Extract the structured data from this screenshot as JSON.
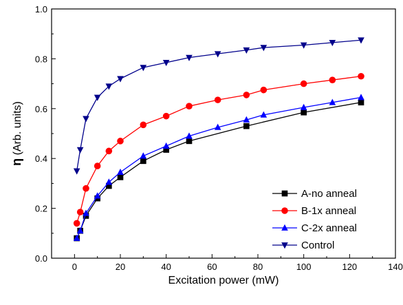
{
  "chart_data": {
    "type": "line",
    "title": "",
    "xlabel": "Excitation power (mW)",
    "ylabel_symbol": "η",
    "ylabel_text": " (Arb. units)",
    "xlim": [
      -10,
      140
    ],
    "ylim": [
      0.0,
      1.0
    ],
    "xticks": [
      0,
      20,
      40,
      60,
      80,
      100,
      120,
      140
    ],
    "yticks": [
      0.0,
      0.2,
      0.4,
      0.6,
      0.8,
      1.0
    ],
    "xtick_labels": [
      "0",
      "20",
      "40",
      "60",
      "80",
      "100",
      "120",
      "140"
    ],
    "ytick_labels": [
      "0.0",
      "0.2",
      "0.4",
      "0.6",
      "0.8",
      "1.0"
    ],
    "grid": false,
    "legend_position": "bottom-right",
    "series": [
      {
        "name": "A-no anneal",
        "color": "#000000",
        "marker": "square",
        "x": [
          1,
          2.5,
          5,
          10,
          15,
          20,
          30,
          40,
          50,
          75,
          100,
          125
        ],
        "y": [
          0.08,
          0.11,
          0.17,
          0.24,
          0.29,
          0.325,
          0.39,
          0.435,
          0.47,
          0.53,
          0.585,
          0.625
        ]
      },
      {
        "name": "B-1x anneal",
        "color": "#ff0000",
        "marker": "circle",
        "x": [
          1,
          2.5,
          5,
          10,
          15,
          20,
          30,
          40,
          50,
          62.5,
          75,
          82.5,
          100,
          112.5,
          125
        ],
        "y": [
          0.14,
          0.185,
          0.28,
          0.37,
          0.43,
          0.47,
          0.535,
          0.57,
          0.61,
          0.635,
          0.655,
          0.675,
          0.7,
          0.715,
          0.73
        ]
      },
      {
        "name": "C-2x anneal",
        "color": "#0000ff",
        "marker": "triangle-up",
        "x": [
          1,
          2.5,
          5,
          10,
          15,
          20,
          30,
          40,
          50,
          62.5,
          75,
          82.5,
          100,
          112.5,
          125
        ],
        "y": [
          0.08,
          0.11,
          0.18,
          0.25,
          0.305,
          0.345,
          0.41,
          0.45,
          0.49,
          0.525,
          0.555,
          0.575,
          0.605,
          0.625,
          0.645
        ]
      },
      {
        "name": "Control",
        "color": "#00008b",
        "marker": "triangle-down",
        "x": [
          1,
          2.5,
          5,
          10,
          15,
          20,
          30,
          40,
          50,
          62.5,
          75,
          82.5,
          100,
          112.5,
          125
        ],
        "y": [
          0.35,
          0.435,
          0.56,
          0.645,
          0.69,
          0.72,
          0.765,
          0.785,
          0.805,
          0.82,
          0.835,
          0.845,
          0.855,
          0.865,
          0.875
        ]
      }
    ]
  }
}
